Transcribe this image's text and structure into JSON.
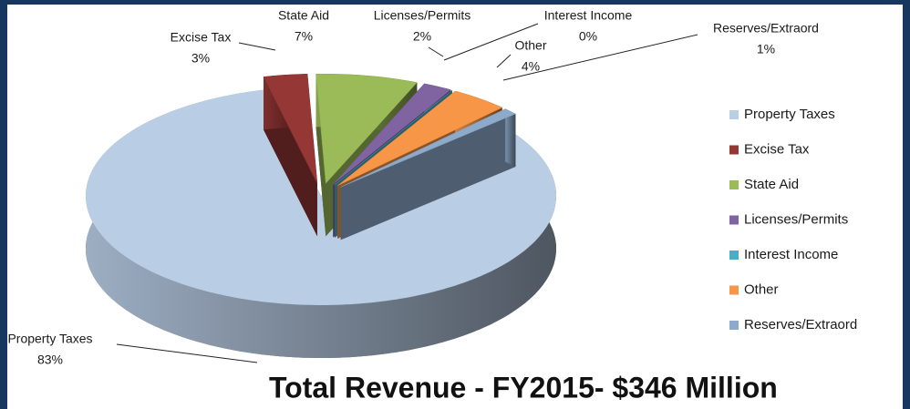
{
  "chart_data": {
    "type": "pie",
    "title": "Total Revenue - FY2015- $346 Million",
    "categories": [
      "Property Taxes",
      "Excise Tax",
      "State Aid",
      "Licenses/Permits",
      "Interest Income",
      "Other",
      "Reserves/Extraord"
    ],
    "values": [
      83,
      3,
      7,
      2,
      0,
      4,
      1
    ],
    "value_labels": [
      "83%",
      "3%",
      "7%",
      "2%",
      "0%",
      "4%",
      "1%"
    ],
    "colors": [
      "#b9cde5",
      "#953735",
      "#9bbb59",
      "#8064a2",
      "#4bacc6",
      "#f79646",
      "#8eaacb"
    ],
    "legend": "right"
  }
}
